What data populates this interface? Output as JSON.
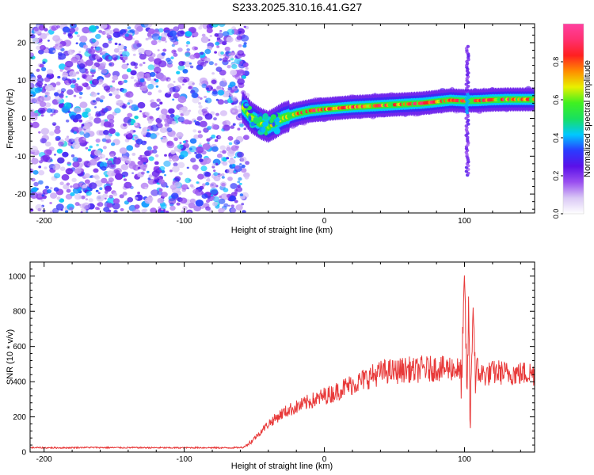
{
  "figure_title": "S233.2025.310.16.41.G27",
  "colors": {
    "snr_line": "#e83a3a",
    "axis": "#000000",
    "colorbar_stops": [
      "#ffffff",
      "#d9c8f5",
      "#9a4ff0",
      "#5a10e8",
      "#2a3cff",
      "#00c8ff",
      "#18e060",
      "#40f020",
      "#e8f000",
      "#ff8c00",
      "#ff2020",
      "#ff3070",
      "#ff40a0"
    ]
  },
  "chart_data": [
    {
      "type": "heatmap",
      "title": "S233.2025.310.16.41.G27",
      "xlabel": "Height of straight line (km)",
      "ylabel": "Frequency (Hz)",
      "xlim": [
        -210,
        150
      ],
      "ylim": [
        -25,
        25
      ],
      "xticks": [
        -200,
        -100,
        0,
        100
      ],
      "xtick_labels": [
        "-200",
        "-100",
        "0",
        "100"
      ],
      "yticks": [
        -20,
        -10,
        0,
        10,
        20
      ],
      "ytick_labels": [
        "-20",
        "-10",
        "0",
        "10",
        "20"
      ],
      "noise_region_x": [
        -210,
        -55
      ],
      "ridge": {
        "x": [
          -58,
          -52,
          -45,
          -40,
          -35,
          -30,
          -20,
          -10,
          0,
          10,
          20,
          30,
          40,
          50,
          60,
          70,
          80,
          90,
          100,
          110,
          120,
          130,
          140,
          150
        ],
        "freq": [
          2.8,
          0.2,
          -1.5,
          -2.2,
          -1.2,
          0.0,
          1.2,
          2.0,
          2.4,
          2.7,
          3.0,
          3.2,
          3.4,
          3.6,
          3.8,
          4.0,
          4.4,
          4.8,
          4.6,
          4.7,
          4.9,
          5.0,
          5.0,
          5.0
        ]
      },
      "vertical_streak": {
        "x": 102,
        "freq_range": [
          -15,
          19
        ]
      },
      "colorbar": {
        "label": "Normalized spectral amplitude",
        "range": [
          0,
          1
        ],
        "ticks": [
          0.0,
          0.2,
          0.4,
          0.6,
          0.8
        ],
        "tick_labels": [
          "0.0",
          "0.2",
          "0.4",
          "0.6",
          "0.8"
        ]
      }
    },
    {
      "type": "line",
      "xlabel": "Height of straight line (km)",
      "ylabel": "SNR (10 * v/v)",
      "xlim": [
        -210,
        150
      ],
      "ylim": [
        0,
        1080
      ],
      "xticks": [
        -200,
        -100,
        0,
        100
      ],
      "xtick_labels": [
        "-200",
        "-100",
        "0",
        "100"
      ],
      "yticks": [
        0,
        200,
        400,
        600,
        800,
        1000
      ],
      "ytick_labels": [
        "0",
        "200",
        "400",
        "600",
        "800",
        "1000"
      ],
      "series": [
        {
          "name": "SNR",
          "x": [
            -210,
            -190,
            -170,
            -150,
            -130,
            -110,
            -90,
            -70,
            -58,
            -52,
            -45,
            -40,
            -35,
            -30,
            -25,
            -20,
            -15,
            -10,
            -5,
            0,
            5,
            10,
            15,
            20,
            25,
            30,
            35,
            40,
            45,
            50,
            55,
            60,
            65,
            70,
            75,
            80,
            85,
            90,
            95,
            98,
            100,
            102,
            103,
            104,
            106,
            108,
            110,
            115,
            120,
            125,
            130,
            135,
            140,
            145,
            150
          ],
          "values": [
            25,
            24,
            26,
            25,
            25,
            24,
            25,
            24,
            26,
            60,
            120,
            160,
            190,
            220,
            240,
            255,
            270,
            290,
            300,
            320,
            330,
            350,
            370,
            385,
            400,
            420,
            435,
            450,
            460,
            455,
            465,
            470,
            460,
            475,
            470,
            480,
            470,
            480,
            470,
            420,
            950,
            300,
            900,
            120,
            860,
            400,
            450,
            440,
            450,
            455,
            445,
            450,
            445,
            450,
            445
          ]
        }
      ]
    }
  ]
}
